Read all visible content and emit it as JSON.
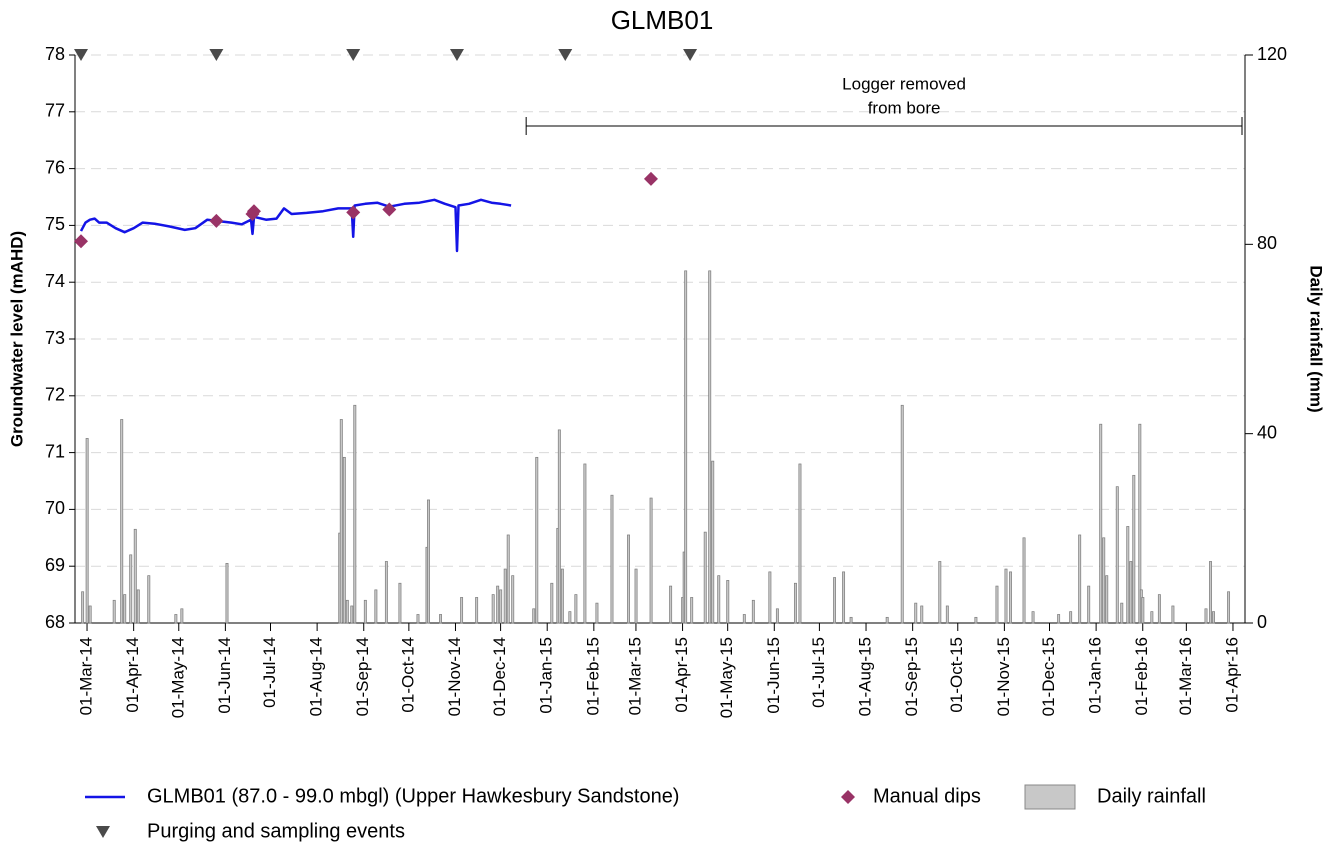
{
  "chart_data": {
    "type": "combo",
    "title": "GLMB01",
    "y_label": "Groundwater level (mAHD)",
    "y2_label": "Daily rainfall (mm)",
    "xlim": [
      "2014-02-21",
      "2016-04-09"
    ],
    "xticks": [
      {
        "value": "2014-03-01",
        "label": "01-Mar-14"
      },
      {
        "value": "2014-04-01",
        "label": "01-Apr-14"
      },
      {
        "value": "2014-05-01",
        "label": "01-May-14"
      },
      {
        "value": "2014-06-01",
        "label": "01-Jun-14"
      },
      {
        "value": "2014-07-01",
        "label": "01-Jul-14"
      },
      {
        "value": "2014-08-01",
        "label": "01-Aug-14"
      },
      {
        "value": "2014-09-01",
        "label": "01-Sep-14"
      },
      {
        "value": "2014-10-01",
        "label": "01-Oct-14"
      },
      {
        "value": "2014-11-01",
        "label": "01-Nov-14"
      },
      {
        "value": "2014-12-01",
        "label": "01-Dec-14"
      },
      {
        "value": "2015-01-01",
        "label": "01-Jan-15"
      },
      {
        "value": "2015-02-01",
        "label": "01-Feb-15"
      },
      {
        "value": "2015-03-01",
        "label": "01-Mar-15"
      },
      {
        "value": "2015-04-01",
        "label": "01-Apr-15"
      },
      {
        "value": "2015-05-01",
        "label": "01-May-15"
      },
      {
        "value": "2015-06-01",
        "label": "01-Jun-15"
      },
      {
        "value": "2015-07-01",
        "label": "01-Jul-15"
      },
      {
        "value": "2015-08-01",
        "label": "01-Aug-15"
      },
      {
        "value": "2015-09-01",
        "label": "01-Sep-15"
      },
      {
        "value": "2015-10-01",
        "label": "01-Oct-15"
      },
      {
        "value": "2015-11-01",
        "label": "01-Nov-15"
      },
      {
        "value": "2015-12-01",
        "label": "01-Dec-15"
      },
      {
        "value": "2016-01-01",
        "label": "01-Jan-16"
      },
      {
        "value": "2016-02-01",
        "label": "01-Feb-16"
      },
      {
        "value": "2016-03-01",
        "label": "01-Mar-16"
      },
      {
        "value": "2016-04-01",
        "label": "01-Apr-16"
      }
    ],
    "ylim": [
      68,
      78
    ],
    "yticks": [
      68,
      69,
      70,
      71,
      72,
      73,
      74,
      75,
      76,
      77,
      78
    ],
    "y2lim": [
      0,
      120
    ],
    "y2ticks": [
      0,
      40,
      80,
      120
    ],
    "grid": true,
    "legend": "bottom",
    "annotation": {
      "text": [
        "Logger removed",
        "from bore"
      ],
      "x_start": "2014-12-18",
      "x_end": "2016-04-07"
    },
    "series": [
      {
        "name": "Daily rainfall",
        "type": "bar",
        "axis": "y2",
        "color": "#c8c8c8",
        "x": [
          "2014-02-26",
          "2014-03-01",
          "2014-03-03",
          "2014-03-19",
          "2014-03-24",
          "2014-03-26",
          "2014-03-30",
          "2014-04-02",
          "2014-04-04",
          "2014-04-11",
          "2014-04-29",
          "2014-05-03",
          "2014-06-02",
          "2014-08-16",
          "2014-08-17",
          "2014-08-19",
          "2014-08-21",
          "2014-08-24",
          "2014-08-26",
          "2014-09-02",
          "2014-09-09",
          "2014-09-16",
          "2014-09-25",
          "2014-10-07",
          "2014-10-13",
          "2014-10-14",
          "2014-10-22",
          "2014-11-05",
          "2014-11-15",
          "2014-11-26",
          "2014-11-29",
          "2014-12-01",
          "2014-12-04",
          "2014-12-06",
          "2014-12-09",
          "2014-12-23",
          "2014-12-25",
          "2015-01-04",
          "2015-01-08",
          "2015-01-09",
          "2015-01-11",
          "2015-01-16",
          "2015-01-20",
          "2015-01-26",
          "2015-02-03",
          "2015-02-13",
          "2015-02-24",
          "2015-03-01",
          "2015-03-11",
          "2015-03-24",
          "2015-04-01",
          "2015-04-02",
          "2015-04-03",
          "2015-04-07",
          "2015-04-16",
          "2015-04-19",
          "2015-04-21",
          "2015-04-25",
          "2015-05-01",
          "2015-05-12",
          "2015-05-18",
          "2015-05-29",
          "2015-06-03",
          "2015-06-15",
          "2015-06-18",
          "2015-07-11",
          "2015-07-17",
          "2015-07-22",
          "2015-08-15",
          "2015-08-25",
          "2015-09-03",
          "2015-09-07",
          "2015-09-19",
          "2015-09-24",
          "2015-10-13",
          "2015-10-27",
          "2015-11-02",
          "2015-11-05",
          "2015-11-14",
          "2015-11-20",
          "2015-12-07",
          "2015-12-15",
          "2015-12-21",
          "2015-12-27",
          "2016-01-04",
          "2016-01-06",
          "2016-01-08",
          "2016-01-15",
          "2016-01-18",
          "2016-01-22",
          "2016-01-24",
          "2016-01-26",
          "2016-01-30",
          "2016-01-31",
          "2016-02-01",
          "2016-02-07",
          "2016-02-12",
          "2016-02-21",
          "2016-03-14",
          "2016-03-17",
          "2016-03-19",
          "2016-03-29"
        ],
        "values": [
          6.6,
          39,
          3.6,
          4.8,
          43,
          6,
          14.4,
          19.8,
          7,
          10,
          1.8,
          3,
          12.6,
          19,
          43,
          35,
          4.8,
          3.6,
          46,
          4.8,
          7,
          13,
          8.4,
          1.8,
          16,
          26,
          1.8,
          5.4,
          5.4,
          6,
          7.8,
          7,
          11.4,
          18.6,
          10,
          3,
          35,
          8.4,
          20,
          40.8,
          11.4,
          2.4,
          6,
          33.6,
          4.2,
          27,
          18.6,
          11.4,
          26.4,
          7.8,
          5.4,
          15,
          74.4,
          5.4,
          19.2,
          74.4,
          34.2,
          10,
          9,
          1.8,
          4.8,
          10.8,
          3,
          8.4,
          33.6,
          9.6,
          10.8,
          1.2,
          1.2,
          46,
          4.2,
          3.6,
          13,
          3.6,
          1.2,
          7.8,
          11.4,
          10.8,
          18,
          2.4,
          1.8,
          2.4,
          18.6,
          7.8,
          42,
          18,
          10,
          28.8,
          4.2,
          20.4,
          13,
          31.2,
          42,
          7,
          5.4,
          2.4,
          6,
          3.6,
          3,
          13,
          2.4,
          6.6
        ]
      },
      {
        "name": "GLMB01 (87.0 - 99.0 mbgl) (Upper Hawkesbury Sandstone)",
        "type": "line",
        "color": "#1414e6",
        "x": [
          "2014-02-25",
          "2014-02-28",
          "2014-03-03",
          "2014-03-06",
          "2014-03-09",
          "2014-03-14",
          "2014-03-20",
          "2014-03-26",
          "2014-04-01",
          "2014-04-07",
          "2014-04-15",
          "2014-04-25",
          "2014-05-05",
          "2014-05-12",
          "2014-05-20",
          "2014-05-26",
          "2014-06-05",
          "2014-06-12",
          "2014-06-18",
          "2014-06-19",
          "2014-06-20",
          "2014-06-28",
          "2014-07-05",
          "2014-07-10",
          "2014-07-15",
          "2014-07-25",
          "2014-08-05",
          "2014-08-15",
          "2014-08-24",
          "2014-08-25",
          "2014-08-26",
          "2014-09-02",
          "2014-09-10",
          "2014-09-18",
          "2014-09-28",
          "2014-10-08",
          "2014-10-18",
          "2014-10-25",
          "2014-11-01",
          "2014-11-02",
          "2014-11-03",
          "2014-11-10",
          "2014-11-18",
          "2014-11-25",
          "2014-12-01",
          "2014-12-08"
        ],
        "values": [
          74.9,
          75.05,
          75.1,
          75.12,
          75.05,
          75.05,
          74.95,
          74.88,
          74.95,
          75.05,
          75.03,
          74.98,
          74.92,
          74.95,
          75.1,
          75.08,
          75.05,
          75.02,
          75.1,
          74.85,
          75.15,
          75.1,
          75.12,
          75.3,
          75.2,
          75.22,
          75.25,
          75.3,
          75.3,
          74.8,
          75.35,
          75.38,
          75.4,
          75.33,
          75.38,
          75.4,
          75.45,
          75.38,
          75.32,
          74.55,
          75.35,
          75.38,
          75.45,
          75.4,
          75.38,
          75.35
        ]
      },
      {
        "name": "Manual dips",
        "type": "scatter",
        "marker": "diamond",
        "color": "#993366",
        "x": [
          "2014-02-25",
          "2014-05-26",
          "2014-06-19",
          "2014-06-20",
          "2014-08-25",
          "2014-09-18",
          "2015-03-11"
        ],
        "values": [
          74.72,
          75.08,
          75.2,
          75.25,
          75.23,
          75.28,
          75.82
        ]
      },
      {
        "name": "Purging and sampling events",
        "type": "scatter",
        "marker": "triangle",
        "color": "#4a4a4a",
        "x": [
          "2014-02-25",
          "2014-05-26",
          "2014-08-25",
          "2014-11-02",
          "2015-01-13",
          "2015-04-06"
        ],
        "values": [
          78,
          78,
          78,
          78,
          78,
          78
        ]
      }
    ]
  }
}
